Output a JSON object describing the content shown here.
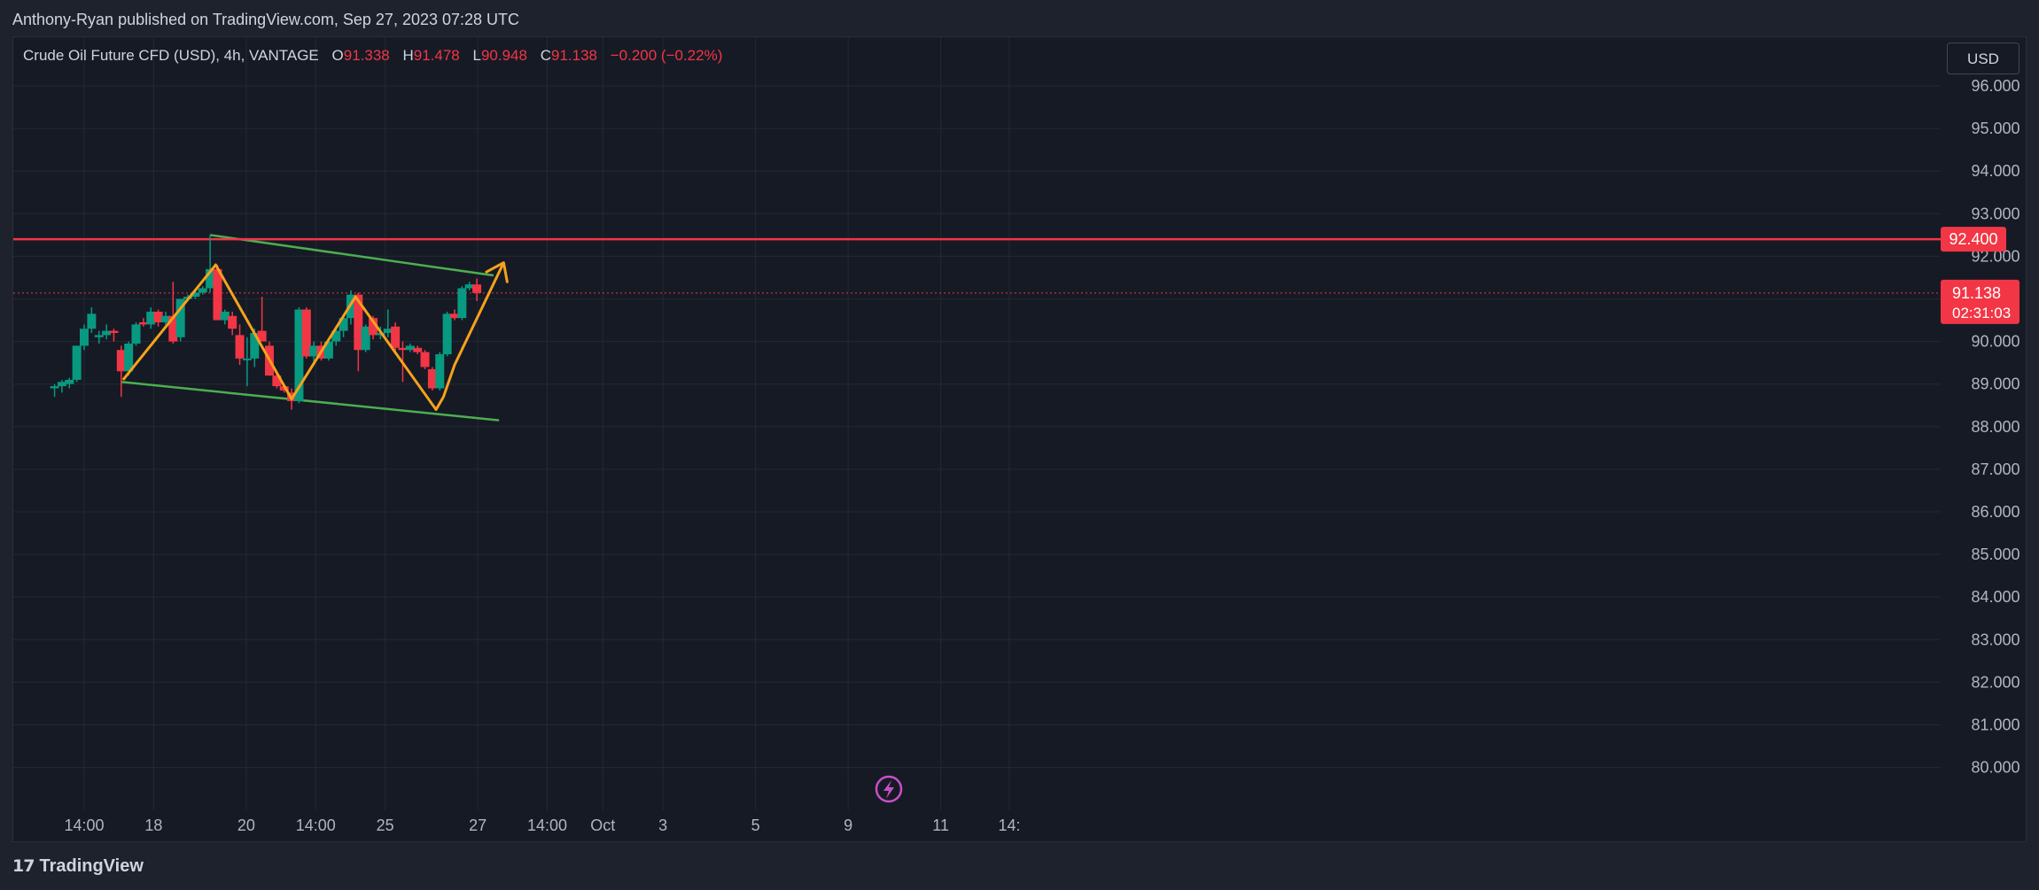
{
  "header": {
    "published_by": "Anthony-Ryan published on TradingView.com, Sep 27, 2023 07:28 UTC"
  },
  "legend": {
    "symbol": "Crude Oil Future CFD (USD), 4h, VANTAGE",
    "open_label": "O",
    "open": "91.338",
    "high_label": "H",
    "high": "91.478",
    "low_label": "L",
    "low": "90.948",
    "close_label": "C",
    "close": "91.138",
    "change": "−0.200 (−0.22%)"
  },
  "currency_button": "USD",
  "footer": {
    "logo_mark": "17",
    "logo_text": "TradingView"
  },
  "lightning_icon": "lightning-icon",
  "chart_data": {
    "type": "candlestick",
    "title": "Crude Oil Future CFD (USD), 4h, VANTAGE",
    "y_axis": {
      "side": "right",
      "ylim": [
        79.9,
        96.3
      ],
      "tick_labels": [
        "96.000",
        "95.000",
        "94.000",
        "93.000",
        "92.000",
        "91.000",
        "90.000",
        "89.000",
        "88.000",
        "87.000",
        "86.000",
        "85.000",
        "84.000",
        "83.000",
        "82.000",
        "81.000",
        "80.000"
      ]
    },
    "x_axis": {
      "tick_labels": [
        {
          "label": "14:00",
          "x": 0
        },
        {
          "label": "18",
          "x": 7.5
        },
        {
          "label": "20",
          "x": 17.5
        },
        {
          "label": "14:00",
          "x": 25
        },
        {
          "label": "25",
          "x": 32.5
        },
        {
          "label": "27",
          "x": 42.5
        },
        {
          "label": "14:00",
          "x": 50
        },
        {
          "label": "Oct",
          "x": 56
        },
        {
          "label": "3",
          "x": 62.5
        },
        {
          "label": "5",
          "x": 72.5
        },
        {
          "label": "9",
          "x": 82.5
        },
        {
          "label": "11",
          "x": 92.5
        },
        {
          "label": "14:",
          "x": 99.9
        }
      ],
      "xlim": [
        -3.5,
        101.5
      ]
    },
    "grid": true,
    "up_color": "#089981",
    "down_color": "#f23645",
    "candles": [
      {
        "x": -3.2,
        "o": 88.9,
        "h": 89.0,
        "l": 88.7,
        "c": 88.95
      },
      {
        "x": -2.4,
        "o": 88.95,
        "h": 89.1,
        "l": 88.8,
        "c": 89.05
      },
      {
        "x": -1.6,
        "o": 89.0,
        "h": 89.15,
        "l": 88.9,
        "c": 89.1
      },
      {
        "x": -0.8,
        "o": 89.1,
        "h": 89.9,
        "l": 89.05,
        "c": 89.9
      },
      {
        "x": 0.0,
        "o": 89.9,
        "h": 90.4,
        "l": 89.8,
        "c": 90.3
      },
      {
        "x": 0.8,
        "o": 90.3,
        "h": 90.8,
        "l": 90.2,
        "c": 90.65
      },
      {
        "x": 1.6,
        "o": 90.1,
        "h": 90.25,
        "l": 89.95,
        "c": 90.15
      },
      {
        "x": 2.4,
        "o": 90.15,
        "h": 90.4,
        "l": 90.05,
        "c": 90.25
      },
      {
        "x": 3.2,
        "o": 90.25,
        "h": 90.3,
        "l": 90.0,
        "c": 90.2
      },
      {
        "x": 4.0,
        "o": 89.8,
        "h": 89.9,
        "l": 88.7,
        "c": 89.3
      },
      {
        "x": 4.8,
        "o": 89.3,
        "h": 90.0,
        "l": 89.2,
        "c": 89.95
      },
      {
        "x": 5.6,
        "o": 89.95,
        "h": 90.45,
        "l": 89.9,
        "c": 90.4
      },
      {
        "x": 6.4,
        "o": 90.45,
        "h": 90.55,
        "l": 90.35,
        "c": 90.4
      },
      {
        "x": 7.2,
        "o": 90.4,
        "h": 90.8,
        "l": 90.3,
        "c": 90.7
      },
      {
        "x": 8.0,
        "o": 90.7,
        "h": 90.75,
        "l": 90.35,
        "c": 90.45
      },
      {
        "x": 8.8,
        "o": 90.45,
        "h": 90.7,
        "l": 90.4,
        "c": 90.6
      },
      {
        "x": 9.6,
        "o": 90.6,
        "h": 91.4,
        "l": 89.95,
        "c": 90.0
      },
      {
        "x": 10.4,
        "o": 90.1,
        "h": 91.0,
        "l": 90.0,
        "c": 91.0
      },
      {
        "x": 11.2,
        "o": 91.0,
        "h": 91.1,
        "l": 90.95,
        "c": 91.05
      },
      {
        "x": 12.0,
        "o": 91.05,
        "h": 91.2,
        "l": 91.0,
        "c": 91.15
      },
      {
        "x": 12.8,
        "o": 91.15,
        "h": 91.3,
        "l": 91.1,
        "c": 91.25
      },
      {
        "x": 13.6,
        "o": 91.25,
        "h": 92.5,
        "l": 91.15,
        "c": 91.7
      },
      {
        "x": 14.4,
        "o": 91.7,
        "h": 91.8,
        "l": 90.5,
        "c": 90.5
      },
      {
        "x": 15.2,
        "o": 90.5,
        "h": 90.75,
        "l": 90.4,
        "c": 90.7
      },
      {
        "x": 16.0,
        "o": 90.6,
        "h": 90.7,
        "l": 90.15,
        "c": 90.3
      },
      {
        "x": 16.8,
        "o": 90.15,
        "h": 90.4,
        "l": 89.45,
        "c": 89.6
      },
      {
        "x": 17.6,
        "o": 89.6,
        "h": 90.1,
        "l": 88.95,
        "c": 89.6
      },
      {
        "x": 18.4,
        "o": 89.6,
        "h": 90.3,
        "l": 89.4,
        "c": 90.2
      },
      {
        "x": 19.2,
        "o": 90.25,
        "h": 91.05,
        "l": 90.1,
        "c": 90.0
      },
      {
        "x": 20.0,
        "o": 89.9,
        "h": 90.0,
        "l": 89.2,
        "c": 89.2
      },
      {
        "x": 20.8,
        "o": 89.2,
        "h": 89.3,
        "l": 88.9,
        "c": 88.95
      },
      {
        "x": 21.6,
        "o": 88.95,
        "h": 89.0,
        "l": 88.8,
        "c": 88.85
      },
      {
        "x": 22.4,
        "o": 88.8,
        "h": 88.9,
        "l": 88.4,
        "c": 88.6
      },
      {
        "x": 23.2,
        "o": 88.6,
        "h": 90.8,
        "l": 88.55,
        "c": 90.75
      },
      {
        "x": 24.0,
        "o": 90.75,
        "h": 90.8,
        "l": 89.6,
        "c": 89.65
      },
      {
        "x": 24.8,
        "o": 89.65,
        "h": 90.0,
        "l": 89.5,
        "c": 89.9
      },
      {
        "x": 25.6,
        "o": 89.9,
        "h": 90.0,
        "l": 89.55,
        "c": 89.6
      },
      {
        "x": 26.4,
        "o": 89.6,
        "h": 90.05,
        "l": 89.55,
        "c": 90.0
      },
      {
        "x": 27.2,
        "o": 90.0,
        "h": 90.3,
        "l": 89.9,
        "c": 90.25
      },
      {
        "x": 28.0,
        "o": 90.25,
        "h": 90.6,
        "l": 90.1,
        "c": 90.55
      },
      {
        "x": 28.8,
        "o": 90.55,
        "h": 91.2,
        "l": 90.4,
        "c": 91.1
      },
      {
        "x": 29.6,
        "o": 91.1,
        "h": 91.15,
        "l": 89.3,
        "c": 89.8
      },
      {
        "x": 30.4,
        "o": 89.8,
        "h": 90.4,
        "l": 89.75,
        "c": 90.35
      },
      {
        "x": 31.2,
        "o": 90.55,
        "h": 90.6,
        "l": 90.05,
        "c": 90.15
      },
      {
        "x": 32.0,
        "o": 90.15,
        "h": 90.35,
        "l": 90.05,
        "c": 90.2
      },
      {
        "x": 32.8,
        "o": 90.2,
        "h": 90.75,
        "l": 90.1,
        "c": 90.3
      },
      {
        "x": 33.6,
        "o": 90.35,
        "h": 90.45,
        "l": 89.75,
        "c": 89.85
      },
      {
        "x": 34.4,
        "o": 89.85,
        "h": 90.0,
        "l": 89.05,
        "c": 89.8
      },
      {
        "x": 35.2,
        "o": 89.8,
        "h": 89.95,
        "l": 89.75,
        "c": 89.9
      },
      {
        "x": 36.0,
        "o": 89.85,
        "h": 89.9,
        "l": 89.7,
        "c": 89.75
      },
      {
        "x": 36.8,
        "o": 89.75,
        "h": 89.8,
        "l": 89.35,
        "c": 89.4
      },
      {
        "x": 37.6,
        "o": 89.35,
        "h": 89.4,
        "l": 88.85,
        "c": 88.9
      },
      {
        "x": 38.4,
        "o": 88.9,
        "h": 89.75,
        "l": 88.85,
        "c": 89.7
      },
      {
        "x": 39.2,
        "o": 89.7,
        "h": 90.7,
        "l": 89.65,
        "c": 90.65
      },
      {
        "x": 40.0,
        "o": 90.65,
        "h": 90.75,
        "l": 90.5,
        "c": 90.55
      },
      {
        "x": 40.8,
        "o": 90.55,
        "h": 91.3,
        "l": 90.5,
        "c": 91.25
      },
      {
        "x": 41.6,
        "o": 91.25,
        "h": 91.4,
        "l": 91.2,
        "c": 91.34
      },
      {
        "x": 42.4,
        "o": 91.338,
        "h": 91.478,
        "l": 90.948,
        "c": 91.138
      }
    ],
    "resistance_line": {
      "value": 92.4,
      "label": "92.400",
      "color": "#f23645"
    },
    "last_price": {
      "value": 91.138,
      "label": "91.138",
      "countdown": "02:31:03",
      "color": "#f23645"
    },
    "trendlines": [
      {
        "color": "#4caf50",
        "points": [
          [
            13.6,
            92.5
          ],
          [
            44.2,
            91.55
          ]
        ]
      },
      {
        "color": "#4caf50",
        "points": [
          [
            4.0,
            89.05
          ],
          [
            44.8,
            88.15
          ]
        ]
      }
    ],
    "zigzag": {
      "color": "#f7a21b",
      "points": [
        [
          4.2,
          89.1
        ],
        [
          14.2,
          91.8
        ],
        [
          22.4,
          88.65
        ],
        [
          29.3,
          91.05
        ],
        [
          38.0,
          88.4
        ],
        [
          38.8,
          88.7
        ],
        [
          40.0,
          89.45
        ],
        [
          45.3,
          91.85
        ]
      ]
    }
  }
}
